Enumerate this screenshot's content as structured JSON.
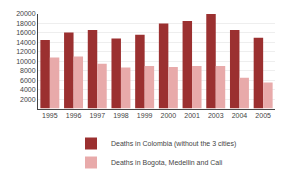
{
  "chart_data": {
    "type": "bar",
    "categories": [
      "1995",
      "1996",
      "1997",
      "1998",
      "1999",
      "2000",
      "2001",
      "2003",
      "2004",
      "2005"
    ],
    "series": [
      {
        "name": "Deaths in Colombia (without the 3 cities)",
        "color": "#9B3030",
        "values": [
          14500,
          16100,
          16600,
          14800,
          15600,
          18000,
          18500,
          20000,
          16600,
          15000
        ]
      },
      {
        "name": "Deaths in Bogota, Medellin and Cali",
        "color": "#E8AAAA",
        "values": [
          10800,
          11000,
          9500,
          8700,
          9000,
          8800,
          9000,
          9000,
          6500,
          5500
        ]
      }
    ],
    "ylim": [
      0,
      20000
    ],
    "yticks": [
      2000,
      4000,
      6000,
      8000,
      10000,
      12000,
      14000,
      16000,
      18000,
      20000
    ],
    "grid": true,
    "legend": "bottom"
  }
}
